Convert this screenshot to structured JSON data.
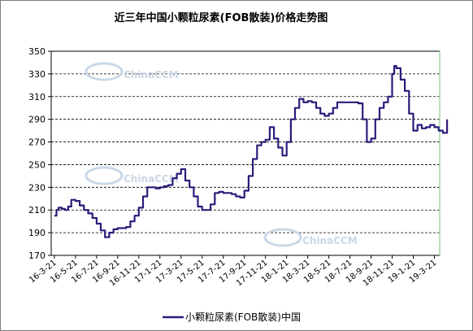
{
  "chart_data": {
    "type": "line",
    "title": "近三年中国小颗粒尿素(FOB散装)价格走势图",
    "xlabel": "",
    "ylabel": "",
    "ylim": [
      170,
      350
    ],
    "yticks": [
      170,
      190,
      210,
      230,
      250,
      270,
      290,
      310,
      330,
      350
    ],
    "xticks": [
      "16-3-21",
      "16-5-21",
      "16-7-21",
      "16-9-21",
      "16-11-21",
      "17-1-21",
      "17-3-21",
      "17-5-21",
      "17-7-21",
      "17-9-21",
      "17-11-21",
      "18-1-21",
      "18-3-21",
      "18-5-21",
      "18-7-21",
      "18-9-21",
      "18-11-21",
      "19-1-21",
      "19-3-21"
    ],
    "grid": "horizontal dashed",
    "legend_position": "bottom",
    "series": [
      {
        "name": "小颗粒尿素(FOB散装)中国",
        "color": "#2e1a7a",
        "x": [
          0,
          0.1,
          0.2,
          0.35,
          0.5,
          0.65,
          0.8,
          1.0,
          1.2,
          1.4,
          1.6,
          1.8,
          2.0,
          2.2,
          2.4,
          2.6,
          2.8,
          3.0,
          3.2,
          3.4,
          3.6,
          3.8,
          4.0,
          4.2,
          4.4,
          4.6,
          4.8,
          5.0,
          5.2,
          5.4,
          5.6,
          5.8,
          6.0,
          6.2,
          6.4,
          6.6,
          6.8,
          7.0,
          7.2,
          7.4,
          7.6,
          7.8,
          8.0,
          8.2,
          8.4,
          8.6,
          8.8,
          9.0,
          9.2,
          9.4,
          9.6,
          9.8,
          10.0,
          10.2,
          10.4,
          10.6,
          10.8,
          11.0,
          11.2,
          11.4,
          11.6,
          11.8,
          12.0,
          12.2,
          12.4,
          12.6,
          12.8,
          13.0,
          13.2,
          13.4,
          13.6,
          13.8,
          14.0,
          14.2,
          14.4,
          14.6,
          14.8,
          15.0,
          15.2,
          15.4,
          15.6,
          15.8,
          16.0,
          16.1,
          16.2,
          16.4,
          16.6,
          16.8,
          17.0,
          17.2,
          17.4,
          17.6,
          17.8,
          18.0,
          18.2,
          18.4,
          18.6
        ],
        "values": [
          205,
          210,
          212,
          211,
          210,
          213,
          219,
          218,
          214,
          210,
          207,
          203,
          198,
          192,
          186,
          190,
          193,
          194,
          194,
          195,
          200,
          205,
          212,
          222,
          230,
          230,
          229,
          230,
          231,
          232,
          238,
          242,
          246,
          236,
          230,
          222,
          213,
          210,
          210,
          215,
          225,
          226,
          225,
          225,
          224,
          222,
          221,
          227,
          240,
          255,
          267,
          270,
          272,
          283,
          273,
          265,
          258,
          270,
          290,
          300,
          308,
          305,
          306,
          305,
          300,
          295,
          293,
          295,
          300,
          305,
          305,
          305,
          305,
          305,
          304,
          290,
          270,
          273,
          290,
          300,
          305,
          310,
          330,
          337,
          335,
          325,
          315,
          295,
          280,
          285,
          282,
          283,
          285,
          283,
          280,
          278,
          290
        ]
      }
    ]
  },
  "watermarks": [
    "ChinaCCM"
  ]
}
